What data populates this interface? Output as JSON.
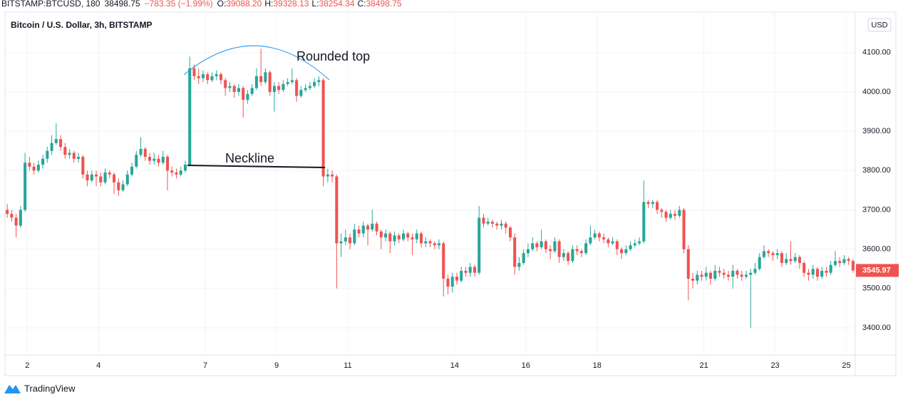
{
  "header": {
    "symbol": "BITSTAMP:BTCUSD, 180",
    "price": "38498.75",
    "change": "−783.35 (−1.99%)",
    "ohlc": [
      {
        "label": "O:",
        "value": "39088.20"
      },
      {
        "label": "H:",
        "value": "39328.13"
      },
      {
        "label": "L:",
        "value": "38254.34"
      },
      {
        "label": "C:",
        "value": "38498.75"
      }
    ],
    "currency_button": "USD",
    "brand": "TradingView"
  },
  "chart_data": {
    "type": "candlestick",
    "title": "Bitcoin / U.S. Dollar, 3h, BITSTAMP",
    "annotations": [
      "Rounded top",
      "Neckline"
    ],
    "up_color": "#26a69a",
    "down_color": "#ef5350",
    "grid": true,
    "ylim": [
      3331,
      4203
    ],
    "yticks": [
      {
        "value": 3400,
        "label": "3400.00"
      },
      {
        "value": 3500,
        "label": "3500.00"
      },
      {
        "value": 3600,
        "label": "3600.00"
      },
      {
        "value": 3700,
        "label": "3700.00"
      },
      {
        "value": 3800,
        "label": "3800.00"
      },
      {
        "value": 3900,
        "label": "3900.00"
      },
      {
        "value": 4000,
        "label": "4000.00"
      },
      {
        "value": 4100,
        "label": "4100.00"
      }
    ],
    "xlim": [
      -0.5,
      190.5
    ],
    "xticks": [
      {
        "value": 4.5,
        "label": "2"
      },
      {
        "value": 20.5,
        "label": "4"
      },
      {
        "value": 44.5,
        "label": "7"
      },
      {
        "value": 60.5,
        "label": "9"
      },
      {
        "value": 76.5,
        "label": "11"
      },
      {
        "value": 100.5,
        "label": "14"
      },
      {
        "value": 116.5,
        "label": "16"
      },
      {
        "value": 132.5,
        "label": "18"
      },
      {
        "value": 156.5,
        "label": "21"
      },
      {
        "value": 172.5,
        "label": "23"
      },
      {
        "value": 188.5,
        "label": "25"
      }
    ],
    "open": [
      3700,
      3690,
      3680,
      3660,
      3700,
      3820,
      3810,
      3800,
      3815,
      3830,
      3850,
      3870,
      3880,
      3860,
      3840,
      3845,
      3830,
      3835,
      3790,
      3775,
      3790,
      3785,
      3770,
      3795,
      3790,
      3770,
      3750,
      3765,
      3790,
      3810,
      3840,
      3855,
      3835,
      3825,
      3830,
      3820,
      3835,
      3800,
      3795,
      3790,
      3800,
      3815,
      4060,
      4040,
      4035,
      4045,
      4030,
      4040,
      4045,
      4030,
      4010,
      4015,
      4000,
      4010,
      3980,
      3995,
      4010,
      4040,
      4025,
      4050,
      4000,
      4015,
      4005,
      4020,
      4025,
      4030,
      3990,
      4005,
      4010,
      4015,
      4025,
      4030,
      3785,
      3790,
      3785,
      3615,
      3620,
      3630,
      3615,
      3650,
      3640,
      3660,
      3650,
      3665,
      3645,
      3630,
      3640,
      3620,
      3635,
      3625,
      3640,
      3630,
      3625,
      3640,
      3615,
      3620,
      3615,
      3610,
      3615,
      3525,
      3505,
      3530,
      3520,
      3545,
      3540,
      3555,
      3540,
      3680,
      3665,
      3670,
      3665,
      3660,
      3665,
      3655,
      3630,
      3555,
      3565,
      3590,
      3600,
      3615,
      3605,
      3620,
      3600,
      3595,
      3620,
      3580,
      3590,
      3570,
      3600,
      3595,
      3590,
      3615,
      3630,
      3640,
      3630,
      3625,
      3615,
      3620,
      3600,
      3590,
      3600,
      3610,
      3615,
      3620,
      3720,
      3715,
      3720,
      3700,
      3695,
      3680,
      3690,
      3685,
      3700,
      3600,
      3525,
      3520,
      3535,
      3530,
      3540,
      3525,
      3545,
      3540,
      3535,
      3530,
      3545,
      3535,
      3530,
      3535,
      3540,
      3550,
      3580,
      3595,
      3590,
      3585,
      3590,
      3565,
      3575,
      3570,
      3580,
      3565,
      3540,
      3535,
      3550,
      3530,
      3545,
      3540,
      3560,
      3570,
      3565,
      3575,
      3570
    ],
    "high": [
      3715,
      3700,
      3690,
      3710,
      3845,
      3835,
      3820,
      3825,
      3840,
      3860,
      3890,
      3920,
      3890,
      3870,
      3855,
      3850,
      3845,
      3840,
      3800,
      3800,
      3800,
      3795,
      3805,
      3800,
      3795,
      3780,
      3775,
      3800,
      3820,
      3850,
      3885,
      3860,
      3845,
      3845,
      3840,
      3850,
      3840,
      3810,
      3805,
      3810,
      3825,
      4090,
      4070,
      4060,
      4055,
      4050,
      4050,
      4055,
      4050,
      4035,
      4025,
      4020,
      4020,
      4015,
      4005,
      4020,
      4060,
      4110,
      4060,
      4055,
      4025,
      4025,
      4030,
      4035,
      4060,
      4035,
      4015,
      4020,
      4025,
      4035,
      4040,
      4035,
      3805,
      3800,
      3790,
      3640,
      3650,
      3640,
      3665,
      3660,
      3670,
      3665,
      3700,
      3670,
      3650,
      3650,
      3645,
      3645,
      3640,
      3650,
      3645,
      3640,
      3650,
      3645,
      3630,
      3625,
      3620,
      3625,
      3620,
      3535,
      3540,
      3540,
      3555,
      3555,
      3565,
      3560,
      3710,
      3690,
      3680,
      3675,
      3670,
      3675,
      3670,
      3660,
      3640,
      3580,
      3600,
      3615,
      3630,
      3620,
      3650,
      3625,
      3610,
      3630,
      3625,
      3600,
      3595,
      3610,
      3610,
      3600,
      3625,
      3660,
      3650,
      3645,
      3640,
      3630,
      3630,
      3625,
      3605,
      3610,
      3620,
      3625,
      3630,
      3775,
      3725,
      3725,
      3725,
      3705,
      3700,
      3700,
      3700,
      3710,
      3705,
      3610,
      3540,
      3545,
      3545,
      3555,
      3545,
      3560,
      3555,
      3550,
      3545,
      3560,
      3550,
      3545,
      3545,
      3550,
      3565,
      3590,
      3610,
      3600,
      3595,
      3600,
      3595,
      3590,
      3620,
      3590,
      3585,
      3570,
      3550,
      3560,
      3555,
      3555,
      3555,
      3570,
      3595,
      3580,
      3585,
      3580,
      3575
    ],
    "low": [
      3680,
      3670,
      3630,
      3655,
      3695,
      3800,
      3790,
      3795,
      3805,
      3820,
      3840,
      3865,
      3850,
      3830,
      3830,
      3820,
      3820,
      3780,
      3760,
      3770,
      3760,
      3760,
      3765,
      3780,
      3740,
      3735,
      3745,
      3760,
      3785,
      3805,
      3835,
      3825,
      3815,
      3815,
      3810,
      3815,
      3750,
      3785,
      3780,
      3785,
      3795,
      3812,
      4030,
      4020,
      4025,
      4020,
      4025,
      4030,
      4020,
      3990,
      4000,
      3985,
      3990,
      3935,
      3970,
      3990,
      4005,
      4015,
      4020,
      3990,
      3950,
      3995,
      4000,
      4015,
      4020,
      3975,
      3985,
      4000,
      4005,
      4010,
      4015,
      3760,
      3770,
      3770,
      3500,
      3580,
      3610,
      3600,
      3610,
      3630,
      3630,
      3610,
      3645,
      3635,
      3600,
      3620,
      3590,
      3610,
      3615,
      3620,
      3620,
      3585,
      3615,
      3605,
      3605,
      3605,
      3600,
      3600,
      3480,
      3485,
      3490,
      3510,
      3515,
      3530,
      3530,
      3530,
      3535,
      3655,
      3660,
      3655,
      3650,
      3650,
      3640,
      3620,
      3535,
      3545,
      3560,
      3580,
      3595,
      3595,
      3600,
      3590,
      3575,
      3590,
      3565,
      3570,
      3560,
      3565,
      3585,
      3580,
      3585,
      3610,
      3625,
      3620,
      3615,
      3605,
      3610,
      3585,
      3575,
      3585,
      3595,
      3605,
      3610,
      3615,
      3705,
      3705,
      3690,
      3680,
      3670,
      3675,
      3675,
      3680,
      3590,
      3470,
      3500,
      3510,
      3520,
      3520,
      3510,
      3520,
      3530,
      3525,
      3520,
      3500,
      3525,
      3520,
      3525,
      3400,
      3535,
      3545,
      3575,
      3580,
      3570,
      3575,
      3555,
      3560,
      3560,
      3565,
      3550,
      3530,
      3520,
      3525,
      3520,
      3525,
      3530,
      3535,
      3555,
      3555,
      3560,
      3560,
      3540
    ],
    "close": [
      3690,
      3680,
      3660,
      3700,
      3820,
      3810,
      3800,
      3815,
      3830,
      3850,
      3870,
      3880,
      3860,
      3840,
      3845,
      3830,
      3835,
      3790,
      3775,
      3790,
      3785,
      3770,
      3795,
      3790,
      3770,
      3750,
      3765,
      3790,
      3810,
      3840,
      3855,
      3835,
      3825,
      3830,
      3820,
      3835,
      3800,
      3795,
      3790,
      3800,
      3815,
      4060,
      4040,
      4035,
      4045,
      4030,
      4040,
      4045,
      4030,
      4010,
      4015,
      4000,
      4010,
      3980,
      3995,
      4010,
      4040,
      4025,
      4050,
      4000,
      4015,
      4005,
      4020,
      4025,
      4030,
      3990,
      4005,
      4010,
      4015,
      4025,
      4030,
      3785,
      3790,
      3785,
      3615,
      3620,
      3630,
      3615,
      3650,
      3640,
      3660,
      3650,
      3665,
      3645,
      3630,
      3640,
      3620,
      3635,
      3625,
      3640,
      3630,
      3625,
      3640,
      3615,
      3620,
      3615,
      3610,
      3615,
      3525,
      3505,
      3530,
      3520,
      3545,
      3540,
      3555,
      3540,
      3680,
      3665,
      3670,
      3665,
      3660,
      3665,
      3655,
      3630,
      3555,
      3565,
      3590,
      3600,
      3615,
      3605,
      3620,
      3600,
      3595,
      3620,
      3580,
      3590,
      3570,
      3600,
      3595,
      3590,
      3615,
      3630,
      3640,
      3630,
      3625,
      3615,
      3620,
      3600,
      3590,
      3600,
      3610,
      3615,
      3620,
      3720,
      3715,
      3720,
      3700,
      3695,
      3680,
      3690,
      3685,
      3700,
      3600,
      3525,
      3520,
      3535,
      3530,
      3540,
      3525,
      3545,
      3540,
      3535,
      3530,
      3545,
      3535,
      3530,
      3535,
      3540,
      3550,
      3580,
      3595,
      3590,
      3585,
      3590,
      3565,
      3575,
      3570,
      3580,
      3565,
      3540,
      3535,
      3550,
      3530,
      3545,
      3540,
      3560,
      3570,
      3565,
      3575,
      3570,
      3545.97
    ],
    "value_labels": {
      "190": "3545.97"
    }
  }
}
